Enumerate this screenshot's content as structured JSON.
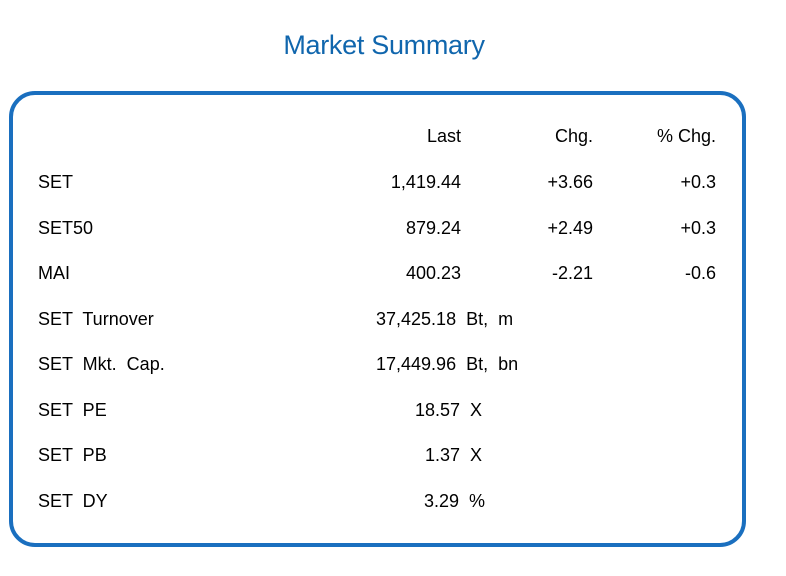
{
  "title": "Market Summary",
  "headers": {
    "last": "Last",
    "chg": "Chg.",
    "pct": "% Chg."
  },
  "indices": [
    {
      "name": "SET",
      "last": "1,419.44",
      "chg": "+3.66",
      "pct": "+0.3"
    },
    {
      "name": "SET50",
      "last": "879.24",
      "chg": "+2.49",
      "pct": "+0.3"
    },
    {
      "name": "MAI",
      "last": "400.23",
      "chg": "-2.21",
      "pct": "-0.6"
    }
  ],
  "stats": [
    {
      "name": "SET  Turnover",
      "value": "37,425.18  Bt,  m"
    },
    {
      "name": "SET  Mkt.  Cap.",
      "value": "17,449.96  Bt,  bn"
    },
    {
      "name": "SET  PE",
      "value": "18.57  X"
    },
    {
      "name": "SET  PB",
      "value": "1.37  X"
    },
    {
      "name": "SET  DY",
      "value": "3.29  %"
    }
  ],
  "colors": {
    "title": "#1066ad",
    "border": "#1a6fbf"
  }
}
